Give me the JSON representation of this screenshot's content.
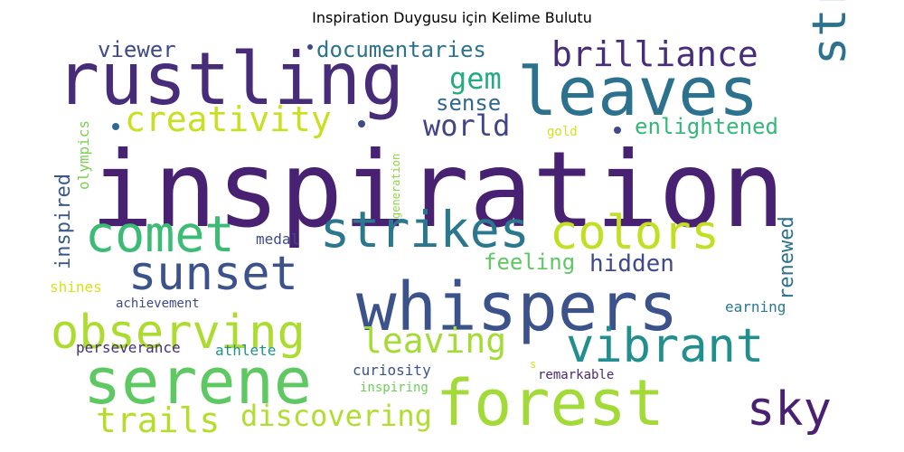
{
  "chart_data": {
    "type": "wordcloud",
    "title": "Inspiration Duygusu için Kelime Bulutu",
    "words": [
      {
        "text": "inspiration",
        "color": "#482173"
      },
      {
        "text": "rustling",
        "color": "#472c7a"
      },
      {
        "text": "leaves",
        "color": "#2c728e"
      },
      {
        "text": "whispers",
        "color": "#3b528b"
      },
      {
        "text": "forest",
        "color": "#a2da37"
      },
      {
        "text": "serene",
        "color": "#5ec962"
      },
      {
        "text": "observing",
        "color": "#addc30"
      },
      {
        "text": "vibrant",
        "color": "#218f8d"
      },
      {
        "text": "streaking",
        "color": "#2c728e"
      },
      {
        "text": "comet",
        "color": "#3cbb75"
      },
      {
        "text": "strikes",
        "color": "#2a788e"
      },
      {
        "text": "colors",
        "color": "#c2df23"
      },
      {
        "text": "sunset",
        "color": "#3b528b"
      },
      {
        "text": "sky",
        "color": "#482173"
      },
      {
        "text": "brilliance",
        "color": "#472d7b"
      },
      {
        "text": "creativity",
        "color": "#c8e020"
      },
      {
        "text": "leaving",
        "color": "#a5db36"
      },
      {
        "text": "trails",
        "color": "#b5de2b"
      },
      {
        "text": "discovering",
        "color": "#b0dd2f"
      },
      {
        "text": "world",
        "color": "#414487"
      },
      {
        "text": "gem",
        "color": "#25ab82"
      },
      {
        "text": "documentaries",
        "color": "#2c738e"
      },
      {
        "text": "viewer",
        "color": "#3e4a89"
      },
      {
        "text": "sense",
        "color": "#31688e"
      },
      {
        "text": "hidden",
        "color": "#3e4a89"
      },
      {
        "text": "feeling",
        "color": "#5ec962"
      },
      {
        "text": "enlightened",
        "color": "#35b779"
      },
      {
        "text": "inspired",
        "color": "#38588c"
      },
      {
        "text": "renewed",
        "color": "#2c728e"
      },
      {
        "text": "medal",
        "color": "#3e4a89"
      },
      {
        "text": "perseverance",
        "color": "#472d7b"
      },
      {
        "text": "athlete",
        "color": "#21918c"
      },
      {
        "text": "curiosity",
        "color": "#3b528b"
      },
      {
        "text": "achievement",
        "color": "#3e4a89"
      },
      {
        "text": "earning",
        "color": "#2a788e"
      },
      {
        "text": "shines",
        "color": "#d8e219"
      },
      {
        "text": "olympics",
        "color": "#7ad151"
      },
      {
        "text": "gold",
        "color": "#d2e21b"
      },
      {
        "text": "generation",
        "color": "#8fd744"
      },
      {
        "text": "remarkable",
        "color": "#482878"
      },
      {
        "text": "inspiring",
        "color": "#6ece58"
      },
      {
        "text": "s",
        "color": "#d5e21a"
      }
    ]
  }
}
